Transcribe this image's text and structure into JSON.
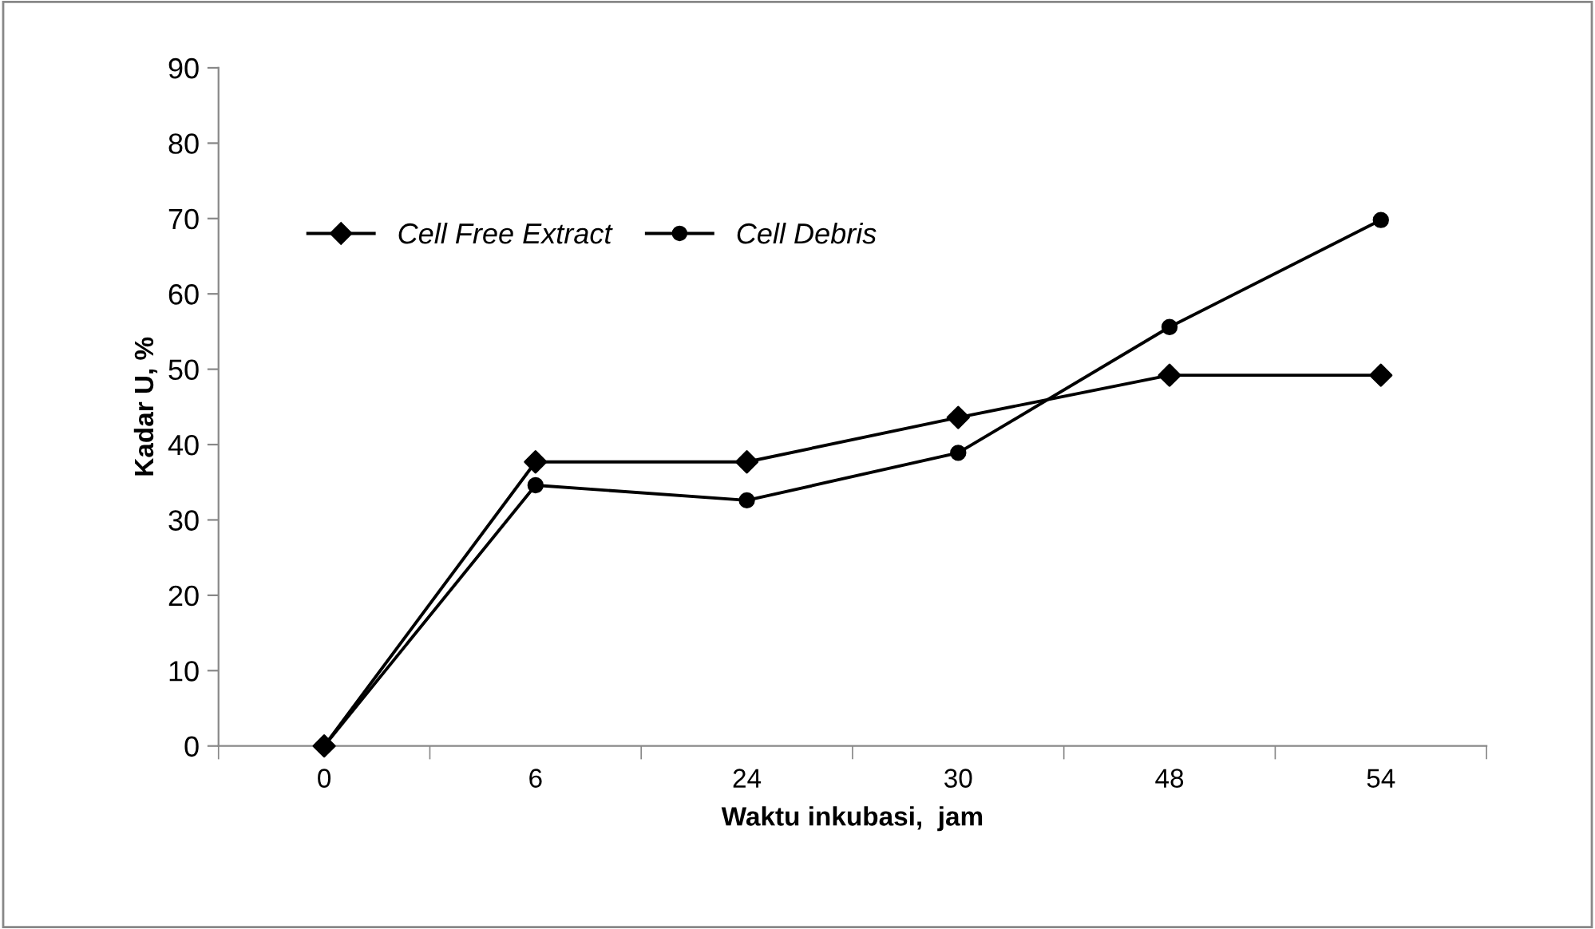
{
  "chart_data": {
    "type": "line",
    "xlabel": "Waktu inkubasi,  jam",
    "ylabel": "Kadar U, %",
    "categories": [
      "0",
      "6",
      "24",
      "30",
      "48",
      "54"
    ],
    "series": [
      {
        "name": "Cell Free Extract",
        "color": "#000000",
        "marker": "diamond",
        "values": [
          0,
          37.7,
          37.7,
          43.6,
          49.2,
          49.2
        ]
      },
      {
        "name": "Cell Debris",
        "color": "#000000",
        "marker": "circle",
        "values": [
          0,
          34.6,
          32.6,
          38.9,
          55.6,
          69.8
        ]
      }
    ],
    "ylim": [
      0,
      90
    ],
    "yticks": [
      0,
      10,
      20,
      30,
      40,
      50,
      60,
      70,
      80,
      90
    ],
    "grid": false,
    "legend": "top left",
    "line_style": "solid"
  }
}
